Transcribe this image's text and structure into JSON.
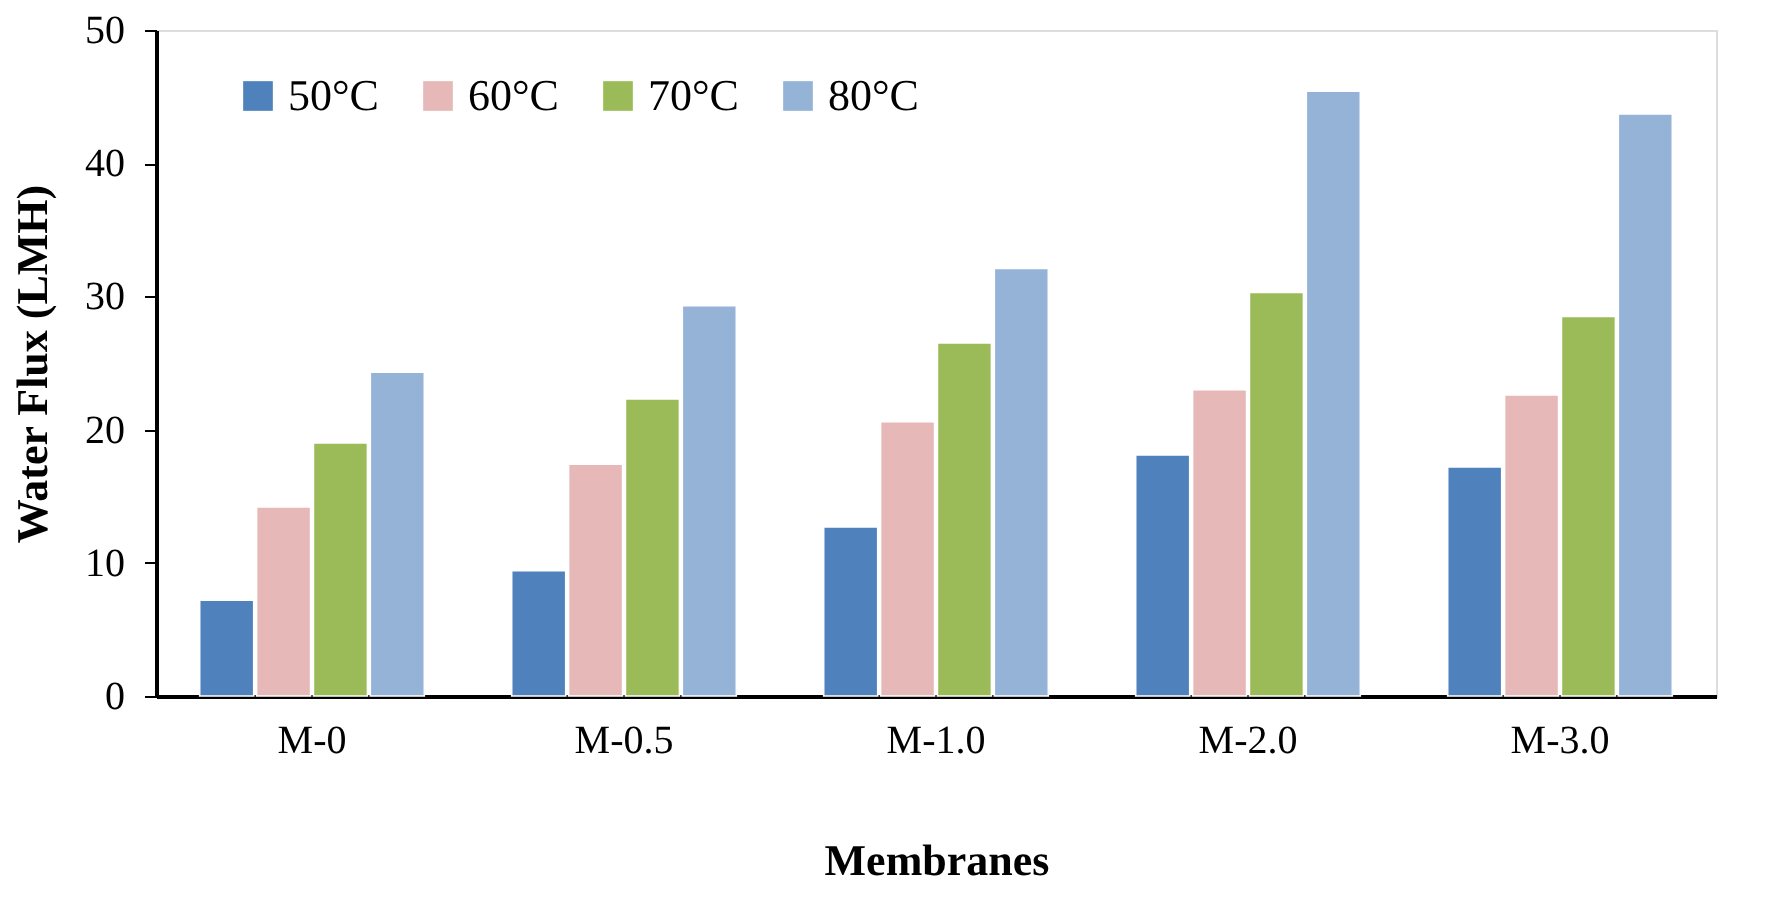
{
  "chart_data": {
    "type": "bar",
    "xlabel": "Membranes",
    "ylabel": "Water Flux (LMH)",
    "categories": [
      "M-0",
      "M-0.5",
      "M-1.0",
      "M-2.0",
      "M-3.0"
    ],
    "series": [
      {
        "name": "50°C",
        "color": "#4f81bd",
        "values": [
          7.2,
          9.4,
          12.7,
          18.1,
          17.2
        ]
      },
      {
        "name": "60°C",
        "color": "#e6b9b8",
        "values": [
          14.2,
          17.4,
          20.6,
          23.0,
          22.6
        ]
      },
      {
        "name": "70°C",
        "color": "#9bbb59",
        "values": [
          19.0,
          22.3,
          26.5,
          30.3,
          28.5
        ]
      },
      {
        "name": "80°C",
        "color": "#95b3d7",
        "values": [
          24.3,
          29.3,
          32.1,
          45.4,
          43.7
        ]
      }
    ],
    "ylim": [
      0,
      50
    ],
    "yticks": [
      0,
      10,
      20,
      30,
      40,
      50
    ],
    "legend": "top left"
  }
}
